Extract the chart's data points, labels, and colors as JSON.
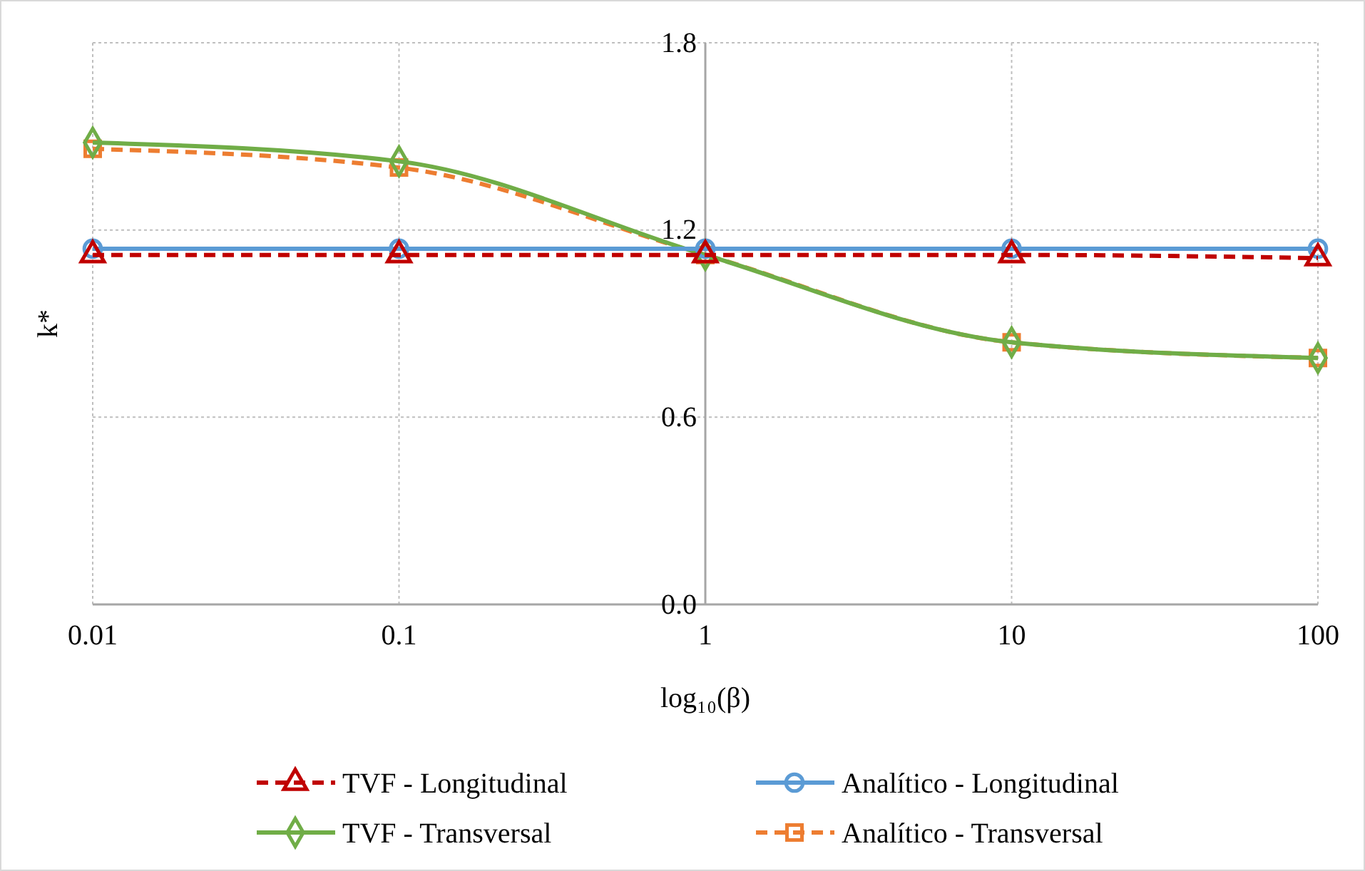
{
  "chart_data": {
    "type": "line",
    "xlabel": "log₁₀(β)",
    "ylabel": "k*",
    "log": "x",
    "x": [
      0.01,
      0.1,
      1,
      10,
      100
    ],
    "xlim": [
      0.01,
      100
    ],
    "xticks": [
      0.01,
      0.1,
      1,
      10,
      100
    ],
    "ylim": [
      0,
      1.8
    ],
    "yticks": [
      {
        "value": 0,
        "label": "0.0"
      },
      0.6,
      1.2,
      1.8
    ],
    "grid": true,
    "legend": "bottom",
    "series": [
      {
        "name": "TVF - Longitudinal",
        "color": "#c00000",
        "values": [
          1.12,
          1.12,
          1.12,
          1.12,
          1.11
        ],
        "marker": "triangle",
        "line_style": "dashed"
      },
      {
        "name": "Analítico - Longitudinal",
        "color": "#5b9bd5",
        "values": [
          1.14,
          1.14,
          1.14,
          1.14,
          1.14
        ],
        "marker": "circle",
        "line_style": "solid"
      },
      {
        "name": "TVF - Transversal",
        "color": "#70ad47",
        "values": [
          1.48,
          1.42,
          1.12,
          0.84,
          0.79
        ],
        "marker": "diamond",
        "line_style": "solid"
      },
      {
        "name": "Analítico - Transversal",
        "color": "#ed7d31",
        "values": [
          1.46,
          1.4,
          1.12,
          0.84,
          0.79
        ],
        "marker": "square",
        "line_style": "dashed"
      }
    ]
  }
}
